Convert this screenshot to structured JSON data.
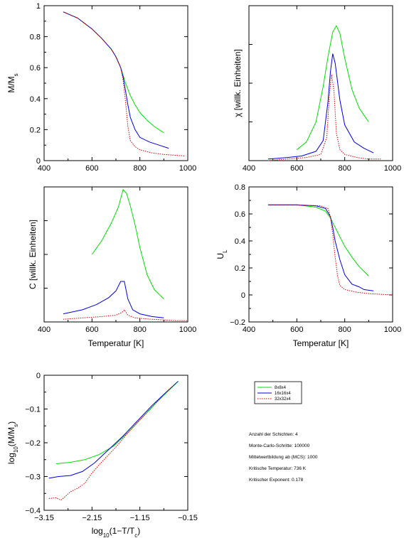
{
  "legend": {
    "items": [
      {
        "label": "8x8x4",
        "color": "#00e000"
      },
      {
        "label": "16x16x4",
        "color": "#0000e0"
      },
      {
        "label": "32x32x4",
        "color": "#e00000"
      }
    ]
  },
  "info": {
    "lines": [
      "Anzahl der Schichten: 4",
      "Monte-Carlo-Schritte: 100000",
      "Mittelwertbildung ab (MCS): 1000",
      "Kritische Temperatur: 736 K",
      "Kritischer Exponent: 0.178"
    ]
  },
  "chart_data": [
    {
      "id": "magnetization",
      "type": "line",
      "title": "",
      "xlabel": "",
      "ylabel": "M/Ms",
      "ylabel_main": "M/M",
      "ylabel_sub": "s",
      "xlim": [
        400,
        1000
      ],
      "ylim": [
        0,
        1
      ],
      "xticks": [
        400,
        600,
        800,
        1000
      ],
      "yticks": [
        0,
        0.2,
        0.4,
        0.6,
        0.8,
        1
      ],
      "ytick_labels": [
        "0",
        "0.2",
        "0.4",
        "0.6",
        "0.8",
        "1"
      ],
      "grid": false,
      "series": [
        {
          "name": "8x8x4",
          "color": "#00e000",
          "x": [
            480,
            540,
            600,
            640,
            680,
            700,
            720,
            740,
            760,
            780,
            800,
            830,
            860,
            900
          ],
          "y": [
            0.96,
            0.92,
            0.85,
            0.79,
            0.72,
            0.67,
            0.6,
            0.5,
            0.42,
            0.36,
            0.31,
            0.26,
            0.22,
            0.18
          ]
        },
        {
          "name": "16x16x4",
          "color": "#0000e0",
          "x": [
            480,
            540,
            600,
            640,
            680,
            700,
            720,
            730,
            740,
            750,
            760,
            780,
            800,
            840,
            880,
            920
          ],
          "y": [
            0.96,
            0.92,
            0.85,
            0.79,
            0.72,
            0.67,
            0.6,
            0.54,
            0.45,
            0.36,
            0.28,
            0.2,
            0.15,
            0.12,
            0.1,
            0.08
          ]
        },
        {
          "name": "32x32x4",
          "color": "#e00000",
          "x": [
            480,
            540,
            600,
            640,
            680,
            700,
            720,
            730,
            740,
            750,
            760,
            780,
            800,
            850,
            900,
            990
          ],
          "y": [
            0.96,
            0.92,
            0.85,
            0.79,
            0.72,
            0.67,
            0.6,
            0.52,
            0.38,
            0.22,
            0.13,
            0.09,
            0.07,
            0.05,
            0.04,
            0.03
          ]
        }
      ]
    },
    {
      "id": "susceptibility",
      "type": "line",
      "title": "",
      "xlabel": "",
      "ylabel": "χ [willk. Einheiten]",
      "xlim": [
        400,
        1000
      ],
      "ylim": [
        0,
        1
      ],
      "xticks": [
        400,
        600,
        800,
        1000
      ],
      "yticks": [],
      "grid": false,
      "series": [
        {
          "name": "8x8x4",
          "color": "#00e000",
          "x": [
            600,
            640,
            680,
            710,
            730,
            750,
            765,
            780,
            800,
            830,
            860,
            900
          ],
          "y": [
            0.07,
            0.12,
            0.25,
            0.48,
            0.67,
            0.83,
            0.87,
            0.82,
            0.66,
            0.46,
            0.34,
            0.25
          ]
        },
        {
          "name": "16x16x4",
          "color": "#0000e0",
          "x": [
            480,
            560,
            620,
            680,
            710,
            730,
            740,
            750,
            760,
            780,
            800,
            840,
            880,
            920
          ],
          "y": [
            0.01,
            0.02,
            0.03,
            0.06,
            0.13,
            0.38,
            0.57,
            0.69,
            0.63,
            0.39,
            0.23,
            0.12,
            0.08,
            0.05
          ]
        },
        {
          "name": "32x32x4",
          "color": "#e00000",
          "x": [
            480,
            560,
            640,
            700,
            725,
            735,
            745,
            755,
            765,
            780,
            800,
            850,
            900,
            950
          ],
          "y": [
            0.0,
            0.01,
            0.02,
            0.04,
            0.15,
            0.4,
            0.56,
            0.45,
            0.18,
            0.07,
            0.04,
            0.02,
            0.01,
            0.01
          ]
        }
      ]
    },
    {
      "id": "specific_heat",
      "type": "line",
      "title": "",
      "xlabel": "Temperatur [K]",
      "ylabel": "C [willk. Einheiten]",
      "xlim": [
        400,
        1000
      ],
      "ylim": [
        0,
        1
      ],
      "xticks": [
        400,
        600,
        800,
        1000
      ],
      "yticks": [],
      "grid": false,
      "series": [
        {
          "name": "8x8x4",
          "color": "#00e000",
          "x": [
            600,
            640,
            680,
            710,
            730,
            745,
            760,
            780,
            800,
            830,
            860,
            900
          ],
          "y": [
            0.5,
            0.6,
            0.73,
            0.85,
            0.98,
            0.95,
            0.86,
            0.72,
            0.55,
            0.35,
            0.24,
            0.17
          ]
        },
        {
          "name": "16x16x4",
          "color": "#0000e0",
          "x": [
            480,
            560,
            620,
            670,
            700,
            720,
            735,
            750,
            770,
            800,
            850,
            900
          ],
          "y": [
            0.06,
            0.09,
            0.13,
            0.18,
            0.23,
            0.3,
            0.3,
            0.17,
            0.09,
            0.06,
            0.04,
            0.03
          ]
        },
        {
          "name": "32x32x4",
          "color": "#e00000",
          "x": [
            480,
            560,
            640,
            700,
            725,
            735,
            750,
            780,
            850,
            950,
            1000
          ],
          "y": [
            0.02,
            0.03,
            0.04,
            0.05,
            0.07,
            0.09,
            0.05,
            0.03,
            0.02,
            0.01,
            0.01
          ]
        }
      ]
    },
    {
      "id": "binder",
      "type": "line",
      "title": "",
      "xlabel": "Temperatur [K]",
      "ylabel": "UL",
      "ylabel_main": "U",
      "ylabel_sub": "L",
      "xlim": [
        400,
        1000
      ],
      "ylim": [
        -0.2,
        0.8
      ],
      "xticks": [
        400,
        600,
        800,
        1000
      ],
      "yticks": [
        -0.2,
        0,
        0.2,
        0.4,
        0.6,
        0.8
      ],
      "ytick_labels": [
        "−0.2",
        "0",
        "0.2",
        "0.4",
        "0.6",
        "0.8"
      ],
      "grid": false,
      "series": [
        {
          "name": "8x8x4",
          "color": "#00e000",
          "x": [
            480,
            600,
            680,
            720,
            740,
            760,
            780,
            800,
            830,
            860,
            900
          ],
          "y": [
            0.667,
            0.667,
            0.65,
            0.62,
            0.57,
            0.5,
            0.43,
            0.36,
            0.28,
            0.21,
            0.14
          ]
        },
        {
          "name": "16x16x4",
          "color": "#0000e0",
          "x": [
            480,
            600,
            680,
            720,
            740,
            750,
            760,
            780,
            800,
            830,
            860,
            880,
            900,
            920
          ],
          "y": [
            0.667,
            0.667,
            0.66,
            0.64,
            0.58,
            0.5,
            0.4,
            0.26,
            0.15,
            0.08,
            0.06,
            0.04,
            0.035,
            0.03
          ]
        },
        {
          "name": "32x32x4",
          "color": "#e00000",
          "x": [
            480,
            600,
            700,
            730,
            740,
            750,
            760,
            770,
            780,
            800,
            850,
            900,
            950,
            1000
          ],
          "y": [
            0.667,
            0.667,
            0.66,
            0.64,
            0.58,
            0.45,
            0.28,
            0.14,
            0.07,
            0.04,
            0.02,
            0.01,
            0.005,
            0.0
          ]
        }
      ]
    },
    {
      "id": "loglog",
      "type": "line",
      "title": "",
      "xlabel": "log10(1−T/Tc)",
      "xlabel_main": "log",
      "xlabel_sub": "10",
      "xlabel_mid": "(1−T/T",
      "xlabel_sub2": "c",
      "xlabel_end": ")",
      "ylabel": "log10(M/Ms)",
      "ylabel_main": "log",
      "ylabel_sub": "10",
      "ylabel_mid": "(M/M",
      "ylabel_sub2": "s",
      "ylabel_end": ")",
      "xlim": [
        -3.15,
        -0.15
      ],
      "ylim": [
        -0.4,
        0
      ],
      "xticks": [
        -3.15,
        -2.15,
        -1.15,
        -0.15
      ],
      "xtick_labels": [
        "−3.15",
        "−2.15",
        "−1.15",
        "−0.15"
      ],
      "yticks": [
        -0.4,
        -0.3,
        -0.2,
        -0.1,
        0
      ],
      "ytick_labels": [
        "−0.4",
        "−0.3",
        "−0.2",
        "−0.1",
        "0"
      ],
      "grid": false,
      "series": [
        {
          "name": "8x8x4",
          "color": "#00e000",
          "x": [
            -2.9,
            -2.6,
            -2.3,
            -2.0,
            -1.7,
            -1.4,
            -1.1,
            -0.8,
            -0.55,
            -0.35
          ],
          "y": [
            -0.262,
            -0.258,
            -0.25,
            -0.235,
            -0.21,
            -0.17,
            -0.125,
            -0.08,
            -0.045,
            -0.018
          ]
        },
        {
          "name": "16x16x4",
          "color": "#0000e0",
          "x": [
            -3.05,
            -2.85,
            -2.6,
            -2.35,
            -2.1,
            -1.8,
            -1.5,
            -1.2,
            -0.9,
            -0.6,
            -0.35
          ],
          "y": [
            -0.305,
            -0.3,
            -0.297,
            -0.285,
            -0.26,
            -0.22,
            -0.18,
            -0.135,
            -0.09,
            -0.05,
            -0.018
          ]
        },
        {
          "name": "32x32x4",
          "color": "#e00000",
          "x": [
            -3.05,
            -2.9,
            -2.8,
            -2.7,
            -2.6,
            -2.45,
            -2.3,
            -2.15,
            -2.0,
            -1.8,
            -1.6,
            -1.4,
            -1.2,
            -0.9,
            -0.6,
            -0.35
          ],
          "y": [
            -0.365,
            -0.363,
            -0.37,
            -0.358,
            -0.345,
            -0.335,
            -0.32,
            -0.29,
            -0.265,
            -0.235,
            -0.205,
            -0.17,
            -0.14,
            -0.095,
            -0.05,
            -0.018
          ]
        }
      ]
    }
  ]
}
